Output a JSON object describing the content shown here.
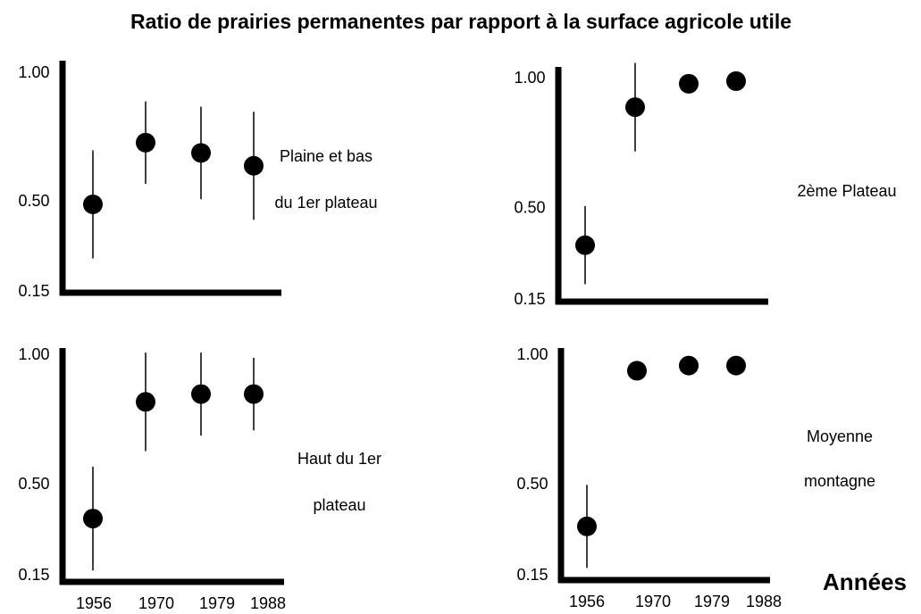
{
  "title": "Ratio de prairies permanentes par rapport à la surface agricole utile",
  "x_label": "Années",
  "chart_data": [
    {
      "type": "scatter",
      "annotation": [
        "Plaine et bas",
        "du 1er plateau"
      ],
      "categories": [
        null,
        null,
        null,
        null
      ],
      "values": [
        0.49,
        0.73,
        0.69,
        0.64
      ],
      "errors": [
        0.21,
        0.16,
        0.18,
        0.21
      ],
      "color": "#000000",
      "ylim": [
        0.15,
        1
      ],
      "yticks": [
        0.15,
        {
          "value": 0.5,
          "label": "0.50"
        },
        {
          "value": 1,
          "label": "1.00"
        }
      ],
      "grid": false
    },
    {
      "type": "scatter",
      "annotation": [
        "2ème Plateau"
      ],
      "categories": [
        null,
        null,
        null,
        null
      ],
      "values": [
        0.36,
        0.89,
        0.98,
        0.99
      ],
      "errors": [
        0.15,
        0.17,
        null,
        null
      ],
      "color": "#000000",
      "ylim": [
        0.15,
        1
      ],
      "yticks": [
        0.15,
        {
          "value": 0.5,
          "label": "0.50"
        },
        {
          "value": 1,
          "label": "1.00"
        }
      ],
      "grid": false
    },
    {
      "type": "scatter",
      "annotation": [
        "Haut du 1er",
        "plateau"
      ],
      "categories": [
        "1956",
        "1970",
        "1979",
        "1988"
      ],
      "values": [
        0.37,
        0.82,
        0.85,
        0.85
      ],
      "errors": [
        0.2,
        0.19,
        0.16,
        0.14
      ],
      "color": "#000000",
      "ylim": [
        0.15,
        1
      ],
      "yticks": [
        0.15,
        {
          "value": 0.5,
          "label": "0.50"
        },
        {
          "value": 1,
          "label": "1.00"
        }
      ],
      "grid": false
    },
    {
      "type": "scatter",
      "annotation": [
        "Moyenne",
        "montagne"
      ],
      "categories": [
        "1956",
        "1970",
        "1979",
        "1988"
      ],
      "values": [
        0.34,
        0.94,
        0.96,
        0.96
      ],
      "errors": [
        0.16,
        null,
        null,
        null
      ],
      "color": "#000000",
      "ylim": [
        0.15,
        1
      ],
      "yticks": [
        0.15,
        {
          "value": 0.5,
          "label": "0.50"
        },
        {
          "value": 1,
          "label": "1.00"
        }
      ],
      "grid": false
    }
  ]
}
